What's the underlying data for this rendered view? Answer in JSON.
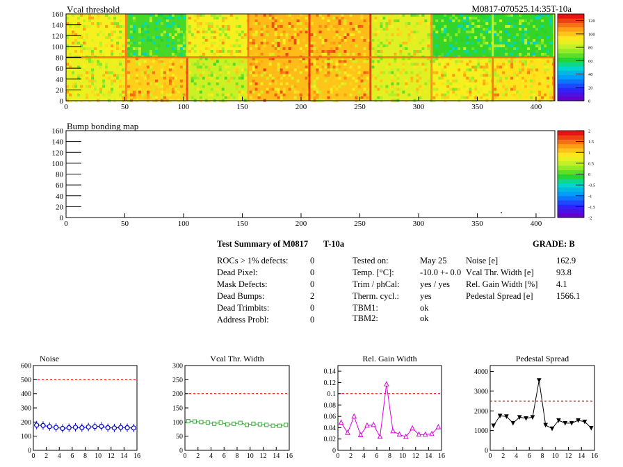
{
  "header": {
    "title": "Vcal threshold",
    "module_id": "M0817-070525.14:35T-10a"
  },
  "chart_data": [
    {
      "type": "heatmap",
      "title": "Vcal threshold",
      "xlim": [
        0,
        416
      ],
      "ylim": [
        0,
        160
      ],
      "x_ticks": [
        "0",
        "50",
        "100",
        "150",
        "200",
        "250",
        "300",
        "350",
        "400"
      ],
      "y_ticks": [
        "0",
        "20",
        "40",
        "60",
        "80",
        "100",
        "120",
        "140",
        "160"
      ],
      "colorbar": {
        "min": 0,
        "max": 130,
        "ticks": [
          "0",
          "20",
          "40",
          "60",
          "80",
          "100",
          "120"
        ]
      },
      "roc_grid": {
        "columns": 8,
        "rows": 2
      },
      "roc_mean_values": [
        [
          92,
          66,
          92,
          104,
          104,
          88,
          64,
          64
        ],
        [
          90,
          100,
          84,
          104,
          102,
          88,
          92,
          96
        ]
      ]
    },
    {
      "type": "heatmap",
      "title": "Bump bonding map",
      "xlim": [
        0,
        416
      ],
      "ylim": [
        0,
        160
      ],
      "x_ticks": [
        "0",
        "50",
        "100",
        "150",
        "200",
        "250",
        "300",
        "350",
        "400"
      ],
      "y_ticks": [
        "0",
        "20",
        "40",
        "60",
        "80",
        "100",
        "120",
        "140",
        "160"
      ],
      "colorbar": {
        "min": -2,
        "max": 2,
        "ticks": [
          "-2",
          "-1.5",
          "-1",
          "-0.5",
          "0",
          "0.5",
          "1",
          "1.5",
          "2"
        ]
      },
      "points": [
        {
          "x": 370,
          "y": 10
        }
      ]
    },
    {
      "type": "line",
      "title": "Noise",
      "xlim": [
        0,
        16
      ],
      "ylim": [
        0,
        600
      ],
      "x_ticks": [
        "0",
        "2",
        "4",
        "6",
        "8",
        "10",
        "12",
        "14",
        "16"
      ],
      "y_ticks": [
        "0",
        "100",
        "200",
        "300",
        "400",
        "500",
        "600"
      ],
      "threshold": 500,
      "color": "#0000cc",
      "marker": "circle",
      "x": [
        0.5,
        1.5,
        2.5,
        3.5,
        4.5,
        5.5,
        6.5,
        7.5,
        8.5,
        9.5,
        10.5,
        11.5,
        12.5,
        13.5,
        14.5,
        15.5
      ],
      "values": [
        178,
        176,
        168,
        162,
        155,
        160,
        163,
        160,
        165,
        168,
        170,
        160,
        158,
        162,
        160,
        158
      ]
    },
    {
      "type": "line",
      "title": "Vcal Thr. Width",
      "xlim": [
        0,
        16
      ],
      "ylim": [
        0,
        300
      ],
      "x_ticks": [
        "0",
        "2",
        "4",
        "6",
        "8",
        "10",
        "12",
        "14",
        "16"
      ],
      "y_ticks": [
        "0",
        "50",
        "100",
        "150",
        "200",
        "250",
        "300"
      ],
      "threshold": 200,
      "color": "#33aa33",
      "marker": "square",
      "x": [
        0.5,
        1.5,
        2.5,
        3.5,
        4.5,
        5.5,
        6.5,
        7.5,
        8.5,
        9.5,
        10.5,
        11.5,
        12.5,
        13.5,
        14.5,
        15.5
      ],
      "values": [
        103,
        102,
        100,
        98,
        94,
        98,
        92,
        94,
        97,
        90,
        94,
        92,
        90,
        87,
        87,
        90
      ]
    },
    {
      "type": "line",
      "title": "Rel. Gain Width",
      "xlim": [
        0,
        16
      ],
      "ylim": [
        0,
        0.15
      ],
      "x_ticks": [
        "0",
        "2",
        "4",
        "6",
        "8",
        "10",
        "12",
        "14",
        "16"
      ],
      "y_ticks": [
        "0",
        "0.02",
        "0.04",
        "0.06",
        "0.08",
        "0.1",
        "0.12",
        "0.14"
      ],
      "threshold": 0.1,
      "color": "#dd00dd",
      "marker": "triangle",
      "x": [
        0.5,
        1.5,
        2.5,
        3.5,
        4.5,
        5.5,
        6.5,
        7.5,
        8.5,
        9.5,
        10.5,
        11.5,
        12.5,
        13.5,
        14.5,
        15.5
      ],
      "values": [
        0.049,
        0.031,
        0.06,
        0.027,
        0.044,
        0.045,
        0.024,
        0.117,
        0.034,
        0.028,
        0.024,
        0.039,
        0.028,
        0.028,
        0.029,
        0.041
      ]
    },
    {
      "type": "line",
      "title": "Pedestal Spread",
      "xlim": [
        0,
        16
      ],
      "ylim": [
        0,
        4300
      ],
      "x_ticks": [
        "0",
        "2",
        "4",
        "6",
        "8",
        "10",
        "12",
        "14",
        "16"
      ],
      "y_ticks": [
        "0",
        "1000",
        "2000",
        "3000",
        "4000"
      ],
      "threshold": 2500,
      "color": "#000000",
      "marker": "triangle-down",
      "x": [
        0.5,
        1.5,
        2.5,
        3.5,
        4.5,
        5.5,
        6.5,
        7.5,
        8.5,
        9.5,
        10.5,
        11.5,
        12.5,
        13.5,
        14.5,
        15.5
      ],
      "values": [
        1250,
        1750,
        1720,
        1380,
        1680,
        1620,
        1680,
        3550,
        1280,
        1100,
        1520,
        1380,
        1380,
        1520,
        1450,
        1130
      ]
    }
  ],
  "summary": {
    "title": "Test Summary of M0817",
    "temp_label": "T-10a",
    "grade": "GRADE:  B",
    "defects": [
      {
        "label": "ROCs > 1% defects:",
        "value": "0"
      },
      {
        "label": "Dead Pixel:",
        "value": "0"
      },
      {
        "label": "Mask Defects:",
        "value": "0"
      },
      {
        "label": "Dead Bumps:",
        "value": "2"
      },
      {
        "label": "Dead Trimbits:",
        "value": "0"
      },
      {
        "label": "Address Probl:",
        "value": "0"
      }
    ],
    "conditions": [
      {
        "label": "Tested on:",
        "value": "May 25"
      },
      {
        "label": "Temp. [°C]:",
        "value": "-10.0 +- 0.0"
      },
      {
        "label": "Trim / phCal:",
        "value": "yes / yes"
      },
      {
        "label": "Therm. cycl.:",
        "value": "yes"
      },
      {
        "label": "TBM1:",
        "value": "ok"
      },
      {
        "label": "TBM2:",
        "value": "ok"
      }
    ],
    "results": [
      {
        "label": "Noise [e]",
        "value": "162.9"
      },
      {
        "label": "Vcal Thr. Width [e]",
        "value": "93.8"
      },
      {
        "label": "Rel. Gain Width [%]",
        "value": "4.1"
      },
      {
        "label": "Pedestal Spread [e]",
        "value": "1566.1"
      }
    ]
  }
}
